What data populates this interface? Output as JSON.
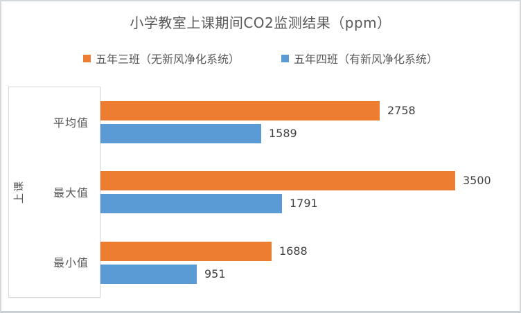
{
  "chart_data": {
    "type": "bar",
    "orientation": "horizontal",
    "title": "小学教室上课期间CO2监测结果（ppm）",
    "ylabel": "上课",
    "xlabel": "",
    "categories": [
      "平均值",
      "最大值",
      "最小值"
    ],
    "series": [
      {
        "name": "五年三班（无新风净化系统）",
        "color": "#ED7D31",
        "values": [
          2758,
          3500,
          1688
        ]
      },
      {
        "name": "五年四班（有新风净化系统）",
        "color": "#5B9BD5",
        "values": [
          1589,
          1791,
          951
        ]
      }
    ],
    "xlim": [
      0,
      4000
    ],
    "data_labels": true,
    "legend_position": "top",
    "grid": false
  },
  "colors": {
    "series_orange": "#ED7D31",
    "series_blue": "#5B9BD5",
    "text_gray": "#595959",
    "value_label": "#404040",
    "axis_border": "#D9D9D9",
    "frame_border": "#D6D9DC"
  }
}
